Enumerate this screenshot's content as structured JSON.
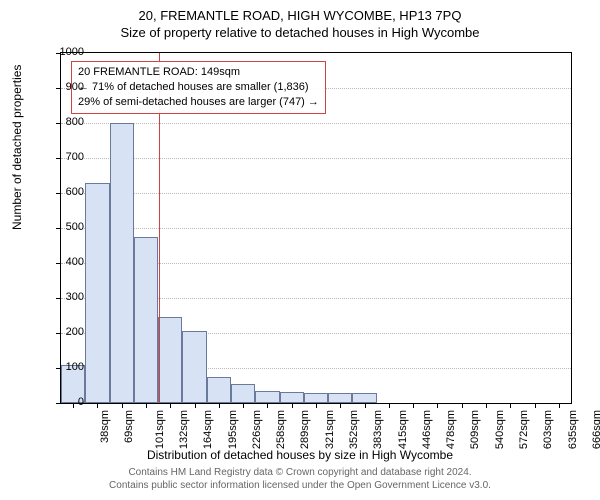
{
  "title_main": "20, FREMANTLE ROAD, HIGH WYCOMBE, HP13 7PQ",
  "title_sub": "Size of property relative to detached houses in High Wycombe",
  "ylabel": "Number of detached properties",
  "xlabel": "Distribution of detached houses by size in High Wycombe",
  "attribution_line1": "Contains HM Land Registry data © Crown copyright and database right 2024.",
  "attribution_line2": "Contains public sector information licensed under the Open Government Licence v3.0.",
  "annotation": {
    "line1": "20 FREMANTLE ROAD: 149sqm",
    "line2": "← 71% of detached houses are smaller (1,836)",
    "line3": "29% of semi-detached houses are larger (747) →"
  },
  "chart": {
    "type": "histogram",
    "ylim": [
      0,
      1000
    ],
    "yticks": [
      0,
      100,
      200,
      300,
      400,
      500,
      600,
      700,
      800,
      900,
      1000
    ],
    "categories": [
      "38sqm",
      "69sqm",
      "101sqm",
      "132sqm",
      "164sqm",
      "195sqm",
      "226sqm",
      "258sqm",
      "289sqm",
      "321sqm",
      "352sqm",
      "383sqm",
      "415sqm",
      "446sqm",
      "478sqm",
      "509sqm",
      "540sqm",
      "572sqm",
      "603sqm",
      "635sqm",
      "666sqm"
    ],
    "values": [
      110,
      630,
      800,
      475,
      245,
      205,
      75,
      55,
      35,
      32,
      30,
      30,
      30,
      0,
      0,
      0,
      0,
      0,
      0,
      0,
      0
    ],
    "bar_fill": "#d7e2f4",
    "bar_border": "#6b7a9a",
    "plot_border": "#000000",
    "grid_color": "#bbbbbb",
    "background": "#ffffff",
    "reference_line_category_index": 3.55,
    "reference_line_color": "#cc4444",
    "annotation_border": "#cc4444",
    "title_fontsize": 13,
    "label_fontsize": 12,
    "tick_fontsize": 11,
    "attribution_fontsize": 10,
    "attribution_color": "#666666"
  }
}
